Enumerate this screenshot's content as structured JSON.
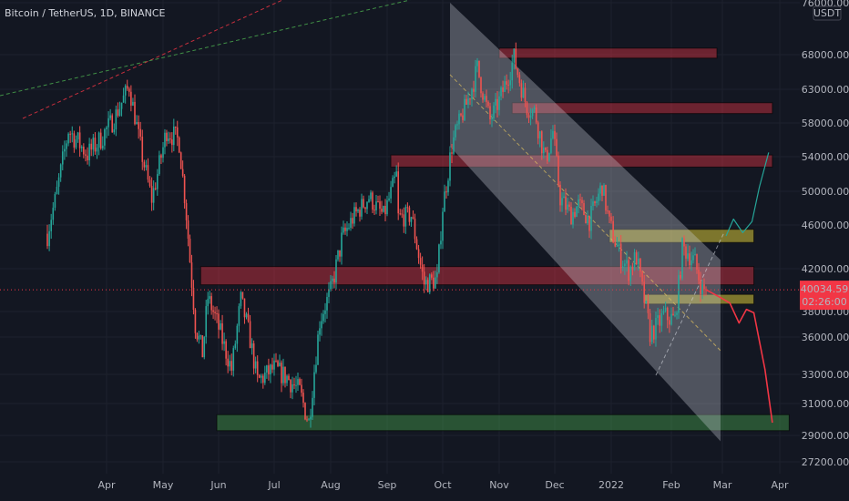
{
  "header": {
    "title": "Bitcoin / TetherUS, 1D, BINANCE",
    "currency_badge": "USDT"
  },
  "price_label": {
    "price": "40034.59",
    "countdown": "02:26:00",
    "color": "#f23645"
  },
  "colors": {
    "background": "#131722",
    "up_candle": "#26a69a",
    "down_candle": "#ef5350",
    "resistance_zone": "#f23645",
    "support_zone": "#4caf50",
    "pivot_zone": "#ffeb3b",
    "channel": "#d1d4dc",
    "projection_down": "#f23645",
    "projection_up": "#26a69a",
    "trendline_red": "#f23645",
    "trendline_green": "#4caf50"
  },
  "chart_data": {
    "type": "candlestick",
    "symbol": "Bitcoin / TetherUS",
    "interval": "1D",
    "exchange": "BINANCE",
    "scale": "log",
    "x_ticks": [
      "Apr",
      "May",
      "Jun",
      "Jul",
      "Aug",
      "Sep",
      "Oct",
      "Nov",
      "Dec",
      "2022",
      "Feb",
      "Mar",
      "Apr"
    ],
    "y_ticks": [
      "76000.00",
      "68000.00",
      "63000.00",
      "58000.00",
      "54000.00",
      "50000.00",
      "46000.00",
      "42000.00",
      "38000.00",
      "36000.00",
      "33000.00",
      "31000.00",
      "29000.00",
      "27200.00"
    ],
    "close_path": [
      [
        "2021-03-01",
        45200
      ],
      [
        "2021-03-05",
        48900
      ],
      [
        "2021-03-12",
        57200
      ],
      [
        "2021-03-22",
        54300
      ],
      [
        "2021-03-28",
        55800
      ],
      [
        "2021-04-05",
        58700
      ],
      [
        "2021-04-13",
        63500
      ],
      [
        "2021-04-18",
        56200
      ],
      [
        "2021-04-25",
        49100
      ],
      [
        "2021-05-03",
        57200
      ],
      [
        "2021-05-10",
        55800
      ],
      [
        "2021-05-13",
        49500
      ],
      [
        "2021-05-19",
        37000
      ],
      [
        "2021-05-23",
        34700
      ],
      [
        "2021-05-26",
        39300
      ],
      [
        "2021-06-01",
        36700
      ],
      [
        "2021-06-08",
        33400
      ],
      [
        "2021-06-13",
        39100
      ],
      [
        "2021-06-18",
        35800
      ],
      [
        "2021-06-22",
        32500
      ],
      [
        "2021-07-01",
        33500
      ],
      [
        "2021-07-08",
        32800
      ],
      [
        "2021-07-15",
        31800
      ],
      [
        "2021-07-20",
        29800
      ],
      [
        "2021-07-26",
        37300
      ],
      [
        "2021-08-01",
        39900
      ],
      [
        "2021-08-07",
        44600
      ],
      [
        "2021-08-14",
        47100
      ],
      [
        "2021-08-22",
        49300
      ],
      [
        "2021-08-30",
        47100
      ],
      [
        "2021-09-06",
        51800
      ],
      [
        "2021-09-07",
        46900
      ],
      [
        "2021-09-14",
        47100
      ],
      [
        "2021-09-21",
        40600
      ],
      [
        "2021-09-28",
        41000
      ],
      [
        "2021-10-01",
        48100
      ],
      [
        "2021-10-06",
        55300
      ],
      [
        "2021-10-15",
        61500
      ],
      [
        "2021-10-20",
        66000
      ],
      [
        "2021-10-27",
        58400
      ],
      [
        "2021-11-01",
        61300
      ],
      [
        "2021-11-09",
        67500
      ],
      [
        "2021-11-16",
        60300
      ],
      [
        "2021-11-20",
        59700
      ],
      [
        "2021-11-26",
        53600
      ],
      [
        "2021-11-30",
        57000
      ],
      [
        "2021-12-04",
        49200
      ],
      [
        "2021-12-10",
        47200
      ],
      [
        "2021-12-14",
        48400
      ],
      [
        "2021-12-20",
        46600
      ],
      [
        "2021-12-27",
        50700
      ],
      [
        "2021-12-31",
        46200
      ],
      [
        "2022-01-05",
        43400
      ],
      [
        "2022-01-10",
        41800
      ],
      [
        "2022-01-14",
        43100
      ],
      [
        "2022-01-21",
        36300
      ],
      [
        "2022-01-24",
        36700
      ],
      [
        "2022-01-28",
        37700
      ],
      [
        "2022-02-03",
        37300
      ],
      [
        "2022-02-07",
        43800
      ],
      [
        "2022-02-10",
        43600
      ],
      [
        "2022-02-14",
        42500
      ],
      [
        "2022-02-18",
        40000
      ],
      [
        "2022-02-20",
        40034.59
      ]
    ],
    "zones": [
      {
        "kind": "resistance",
        "from": "2021-11-01",
        "to": "2022-02-26",
        "low": 67500,
        "high": 69000
      },
      {
        "kind": "resistance",
        "from": "2021-11-08",
        "to": "2022-03-28",
        "low": 59400,
        "high": 61000
      },
      {
        "kind": "resistance",
        "from": "2021-09-03",
        "to": "2022-03-28",
        "low": 52800,
        "high": 54200
      },
      {
        "kind": "pivot",
        "from": "2021-12-31",
        "to": "2022-03-18",
        "low": 44400,
        "high": 45600
      },
      {
        "kind": "resistance",
        "from": "2021-05-22",
        "to": "2022-03-18",
        "low": 40500,
        "high": 42200
      },
      {
        "kind": "pivot",
        "from": "2022-01-18",
        "to": "2022-03-18",
        "low": 38700,
        "high": 39600
      },
      {
        "kind": "support",
        "from": "2021-05-31",
        "to": "2022-04-06",
        "low": 29300,
        "high": 30300
      }
    ],
    "descending_channel": {
      "from": "2021-10-05",
      "to": "2022-02-28",
      "upper": [
        76000,
        42800
      ],
      "lower": [
        55200,
        28600
      ]
    },
    "projection_down": [
      [
        "2022-02-20",
        40034.59
      ],
      [
        "2022-02-27",
        39400
      ],
      [
        "2022-03-05",
        38800
      ],
      [
        "2022-03-10",
        37100
      ],
      [
        "2022-03-14",
        38200
      ],
      [
        "2022-03-18",
        37900
      ],
      [
        "2022-03-24",
        33400
      ],
      [
        "2022-03-28",
        29800
      ]
    ],
    "projection_up": [
      [
        "2022-03-03",
        45000
      ],
      [
        "2022-03-07",
        46700
      ],
      [
        "2022-03-12",
        45300
      ],
      [
        "2022-03-17",
        46400
      ],
      [
        "2022-03-21",
        50500
      ],
      [
        "2022-03-26",
        54500
      ]
    ]
  }
}
